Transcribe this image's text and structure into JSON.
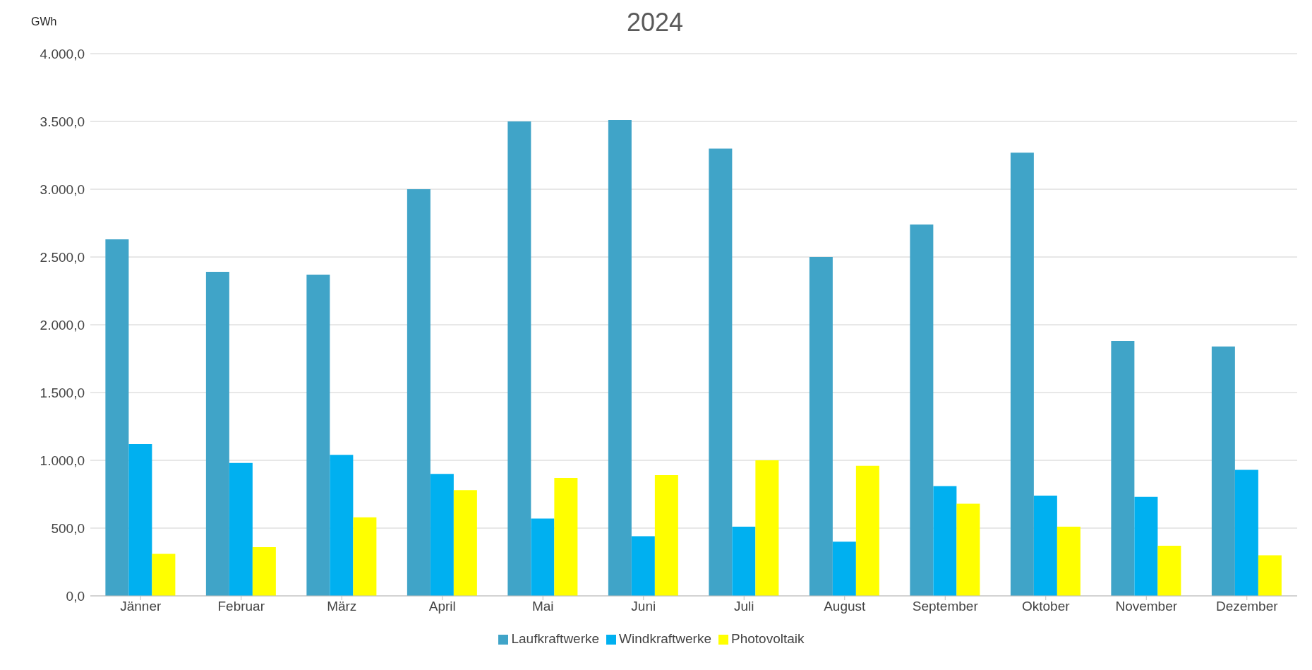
{
  "chart_data": {
    "type": "bar",
    "title": "2024",
    "ylabel": "GWh",
    "categories": [
      "Jänner",
      "Februar",
      "März",
      "April",
      "Mai",
      "Juni",
      "Juli",
      "August",
      "September",
      "Oktober",
      "November",
      "Dezember"
    ],
    "series": [
      {
        "name": "Laufkraftwerke",
        "color": "#40a4c8",
        "values": [
          2630,
          2390,
          2370,
          3000,
          3500,
          3510,
          3300,
          2500,
          2740,
          3270,
          1880,
          1840
        ]
      },
      {
        "name": "Windkraftwerke",
        "color": "#00b0f0",
        "values": [
          1120,
          980,
          1040,
          900,
          570,
          440,
          510,
          400,
          810,
          740,
          730,
          930
        ]
      },
      {
        "name": "Photovoltaik",
        "color": "#ffff00",
        "values": [
          310,
          360,
          580,
          780,
          870,
          890,
          1000,
          960,
          680,
          510,
          370,
          300
        ]
      }
    ],
    "ylim": [
      0,
      4000
    ],
    "yticks": [
      {
        "value": 0,
        "label": "0,0"
      },
      {
        "value": 500,
        "label": "500,0"
      },
      {
        "value": 1000,
        "label": "1.000,0"
      },
      {
        "value": 1500,
        "label": "1.500,0"
      },
      {
        "value": 2000,
        "label": "2.000,0"
      },
      {
        "value": 2500,
        "label": "2.500,0"
      },
      {
        "value": 3000,
        "label": "3.000,0"
      },
      {
        "value": 3500,
        "label": "3.500,0"
      },
      {
        "value": 4000,
        "label": "4.000,0"
      }
    ],
    "grid": "y",
    "legend": "bottom"
  }
}
